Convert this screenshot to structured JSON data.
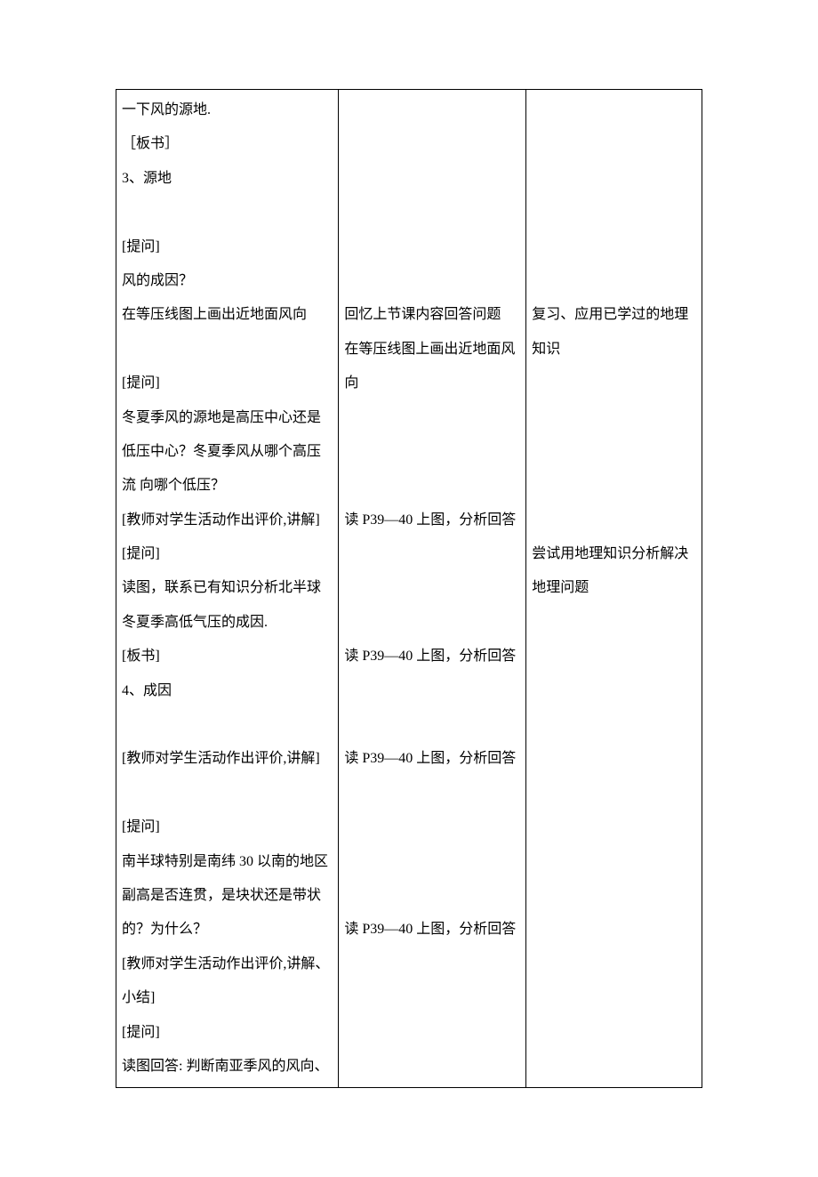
{
  "table": {
    "border_color": "#000000",
    "background_color": "#ffffff",
    "text_color": "#000000",
    "font_size_pt": 12,
    "font_family": "SimSun",
    "line_height": 2.4,
    "columns": [
      {
        "width_pct": 38
      },
      {
        "width_pct": 32
      },
      {
        "width_pct": 30
      }
    ],
    "row": {
      "col1": "一下风的源地.\n［板书］\n3、源地\n\n[提问]\n风的成因？\n在等压线图上画出近地面风向\n\n[提问]\n冬夏季风的源地是高压中心还是低压中心？冬夏季风从哪个高压流  向哪个低压？\n[教师对学生活动作出评价,讲解]\n[提问]\n读图，联系已有知识分析北半球冬夏季高低气压的成因.\n[板书]\n4、成因\n\n[教师对学生活动作出评价,讲解]\n\n[提问]\n南半球特别是南纬 30 以南的地区副高是否连贯，是块状还是带状的？为什么？\n[教师对学生活动作出评价,讲解、小结]\n[提问]\n读图回答: 判断南亚季风的风向、",
      "col2": "\n\n\n\n\n\n回忆上节课内容回答问题\n在等压线图上画出近地面风向\n\n\n\n读 P39—40 上图，分析回答\n\n\n\n读 P39—40 上图，分析回答\n\n\n读 P39—40 上图，分析回答\n\n\n\n\n读 P39—40 上图，分析回答",
      "col3": "\n\n\n\n\n\n复习、应用已学过的地理知识\n\n\n\n\n\n尝试用地理知识分析解决地理问题"
    }
  }
}
